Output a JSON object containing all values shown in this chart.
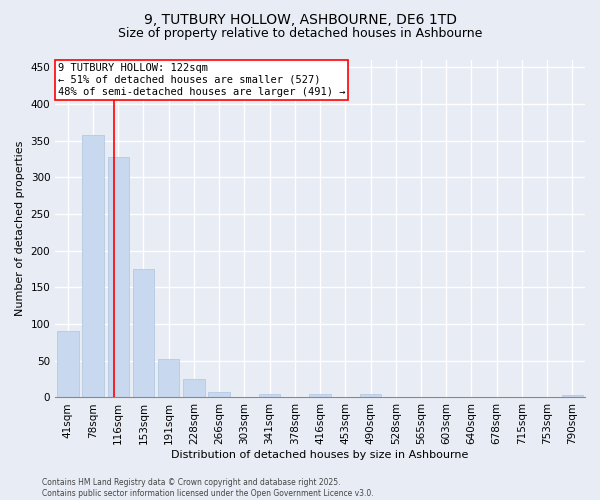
{
  "title": "9, TUTBURY HOLLOW, ASHBOURNE, DE6 1TD",
  "subtitle": "Size of property relative to detached houses in Ashbourne",
  "xlabel": "Distribution of detached houses by size in Ashbourne",
  "ylabel": "Number of detached properties",
  "bins": [
    "41sqm",
    "78sqm",
    "116sqm",
    "153sqm",
    "191sqm",
    "228sqm",
    "266sqm",
    "303sqm",
    "341sqm",
    "378sqm",
    "416sqm",
    "453sqm",
    "490sqm",
    "528sqm",
    "565sqm",
    "603sqm",
    "640sqm",
    "678sqm",
    "715sqm",
    "753sqm",
    "790sqm"
  ],
  "values": [
    90,
    358,
    328,
    175,
    52,
    25,
    8,
    0,
    5,
    0,
    5,
    0,
    5,
    0,
    0,
    0,
    0,
    0,
    0,
    0,
    3
  ],
  "bar_color": "#c8d8ee",
  "bar_edge_color": "#b0c4de",
  "vline_x": 1.85,
  "vline_color": "red",
  "annotation_text": "9 TUTBURY HOLLOW: 122sqm\n← 51% of detached houses are smaller (527)\n48% of semi-detached houses are larger (491) →",
  "annotation_box_color": "white",
  "annotation_box_edge": "red",
  "ylim": [
    0,
    460
  ],
  "yticks": [
    0,
    50,
    100,
    150,
    200,
    250,
    300,
    350,
    400,
    450
  ],
  "background_color": "#e8edf5",
  "grid_color": "white",
  "footer": "Contains HM Land Registry data © Crown copyright and database right 2025.\nContains public sector information licensed under the Open Government Licence v3.0.",
  "title_fontsize": 10,
  "subtitle_fontsize": 9,
  "xlabel_fontsize": 8,
  "ylabel_fontsize": 8,
  "tick_fontsize": 7.5,
  "annotation_fontsize": 7.5,
  "footer_fontsize": 5.5
}
